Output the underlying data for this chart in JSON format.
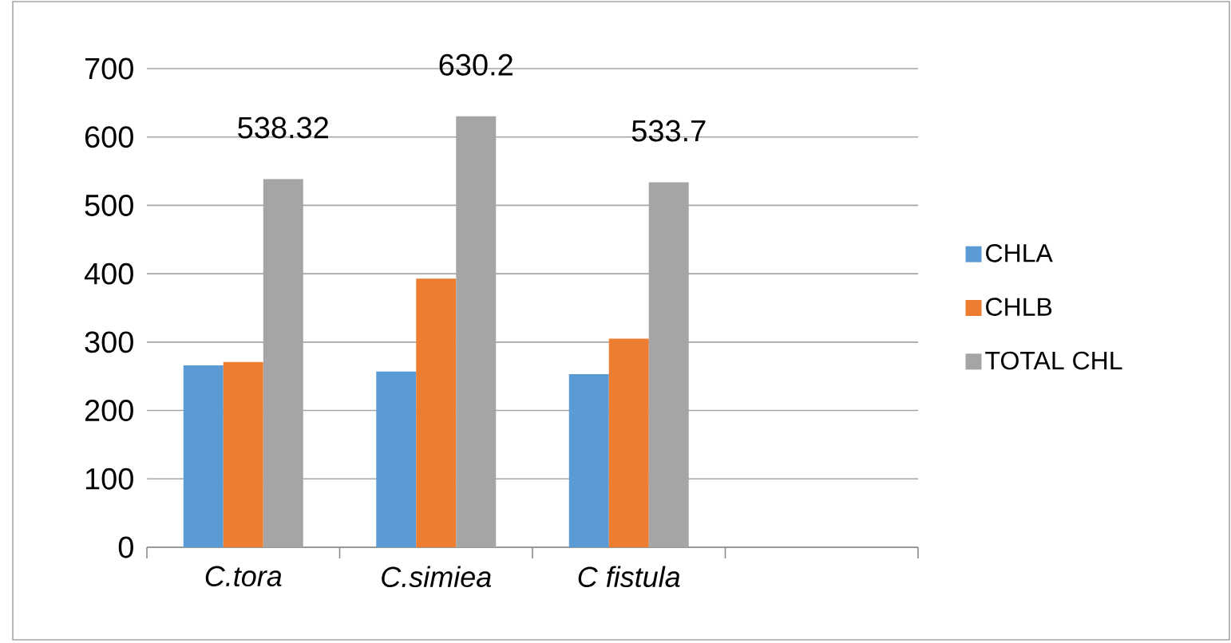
{
  "chart_data": {
    "type": "bar",
    "categories": [
      "C.tora",
      "C.simiea",
      "C fistula",
      null
    ],
    "series": [
      {
        "name": "CHLA",
        "color": "#5b9bd5",
        "values": [
          266,
          257,
          253,
          null
        ]
      },
      {
        "name": "CHLB",
        "color": "#ed7d31",
        "values": [
          271,
          393,
          305,
          null
        ]
      },
      {
        "name": "TOTAL CHL",
        "color": "#a5a5a5",
        "values": [
          538.32,
          630.2,
          533.7,
          null
        ],
        "value_labels": [
          "538.32",
          "630.2",
          "533.7",
          null
        ]
      }
    ],
    "ylim": [
      0,
      700
    ],
    "yticks": [
      0,
      100,
      200,
      300,
      400,
      500,
      600,
      700
    ],
    "grid": "y",
    "legend": "right"
  }
}
